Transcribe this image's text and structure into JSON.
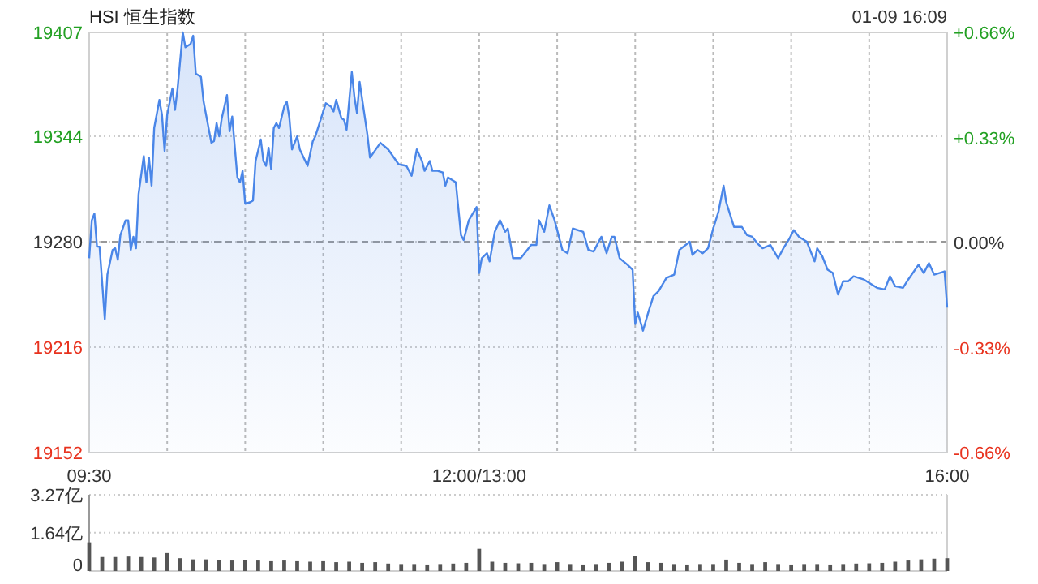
{
  "chart_data": [
    {
      "type": "area",
      "title": "HSI 恒生指数",
      "subtitle": "01-09 16:09",
      "categories": [
        "09:30",
        null,
        null,
        null,
        null,
        null,
        null,
        null,
        null,
        null,
        null,
        null,
        null,
        null,
        null,
        null,
        null,
        null,
        null,
        null,
        null,
        null,
        null,
        null,
        null,
        null,
        null,
        null,
        null,
        null,
        null,
        null,
        null,
        null,
        null,
        null,
        null,
        null,
        null,
        null,
        null,
        null,
        null,
        null,
        null,
        null,
        null,
        null,
        null,
        null,
        null,
        null,
        null,
        null,
        null,
        null,
        null,
        null,
        null,
        null,
        null,
        null,
        null,
        null,
        null,
        null,
        null,
        null,
        null,
        null,
        null,
        null,
        null,
        null,
        null,
        null,
        null,
        null,
        null,
        null,
        null,
        null,
        null,
        null,
        null,
        null,
        null,
        null,
        null,
        null,
        null,
        null,
        null,
        null,
        null,
        null,
        null,
        null,
        null,
        null,
        null,
        null,
        null,
        null,
        null,
        null,
        null,
        null,
        null,
        null,
        null,
        null,
        null,
        null,
        null,
        null,
        null,
        null,
        null,
        null,
        null,
        null,
        null,
        null,
        null,
        null,
        null,
        null,
        null,
        null,
        null,
        null,
        null,
        null,
        null,
        null,
        null,
        null,
        null,
        null,
        null,
        null,
        null,
        null,
        null,
        null,
        null,
        null,
        null,
        null,
        "12:00/13:00",
        null,
        null,
        null,
        null,
        null,
        null,
        null,
        null,
        null,
        null,
        null,
        null,
        null,
        null,
        null,
        null,
        null,
        null,
        null,
        null,
        null,
        null,
        null,
        null,
        null,
        null,
        null,
        null,
        null,
        null,
        null,
        null,
        null,
        null,
        null,
        null,
        null,
        null,
        null,
        null,
        null,
        null,
        null,
        null,
        null,
        null,
        null,
        null,
        null,
        null,
        null,
        null,
        null,
        null,
        null,
        null,
        null,
        null,
        null,
        null,
        null,
        null,
        null,
        null,
        null,
        null,
        null,
        null,
        null,
        null,
        null,
        null,
        null,
        null,
        null,
        null,
        null,
        null,
        null,
        null,
        null,
        null,
        null,
        null,
        null,
        null,
        null,
        null,
        null,
        null,
        null,
        null,
        null,
        null,
        null,
        null,
        null,
        null,
        null,
        null,
        null,
        null,
        null,
        null,
        null,
        null,
        null,
        null,
        null,
        null,
        null,
        null,
        null,
        null,
        null,
        null,
        null,
        null,
        null,
        null,
        null,
        null,
        null,
        null,
        null,
        null,
        null,
        null,
        null,
        null,
        null,
        null,
        null,
        null,
        null,
        null,
        null,
        null,
        null,
        null,
        null,
        null,
        null,
        null,
        null,
        null,
        null,
        null,
        null,
        null,
        null,
        null,
        null,
        null,
        null,
        null,
        null,
        null,
        null,
        null,
        null,
        null,
        null,
        null,
        null,
        null,
        null,
        null,
        null,
        null,
        null,
        null,
        null,
        null,
        null,
        null,
        null,
        null,
        null,
        "16:00"
      ],
      "series": [
        {
          "color": "#4a86e8",
          "values": [
            19270,
            19293,
            19297,
            19277,
            19277,
            null,
            19233,
            19260,
            null,
            19275,
            19276,
            19269,
            19284,
            null,
            19293,
            19293,
            19275,
            19283,
            19276,
            19309,
            null,
            19332,
            19316,
            19331,
            19314,
            19349,
            null,
            19366,
            19357,
            19335,
            19357,
            null,
            19373,
            19360,
            19373,
            null,
            19407,
            19398,
            null,
            19400,
            19405,
            19382,
            null,
            19380,
            19365,
            null,
            null,
            19340,
            19341,
            19352,
            19344,
            19355,
            null,
            19369,
            19347,
            19356,
            null,
            19319,
            19316,
            19323,
            19303,
            null,
            19304,
            19305,
            19329,
            null,
            19342,
            19329,
            19326,
            19337,
            19324,
            19349,
            19352,
            19349,
            null,
            19362,
            19365,
            19355,
            19336,
            null,
            19344,
            19336,
            null,
            null,
            19326,
            null,
            19341,
            19344,
            null,
            19354,
            null,
            19364,
            null,
            19362,
            19359,
            19366,
            null,
            19355,
            19354,
            19348,
            null,
            19383,
            19368,
            19358,
            19377,
            null,
            null,
            19345,
            19331,
            null,
            null,
            null,
            19340,
            null,
            null,
            19336,
            null,
            null,
            null,
            19327,
            null,
            null,
            19326,
            null,
            19320,
            null,
            19336,
            null,
            19329,
            19323,
            null,
            19329,
            19323,
            null,
            19323,
            null,
            19322,
            19314,
            19319,
            null,
            null,
            19316,
            null,
            19284,
            19281,
            null,
            19293,
            null,
            null,
            19301,
            19261,
            19270,
            null,
            19273,
            19268,
            null,
            19286,
            null,
            19293,
            null,
            19286,
            19288,
            null,
            19270,
            null,
            null,
            19270,
            null,
            null,
            null,
            19278,
            null,
            19278,
            19293,
            null,
            19286,
            null,
            19302,
            null,
            19293,
            null,
            null,
            19275,
            null,
            19273,
            null,
            19288,
            null,
            null,
            null,
            19286,
            null,
            19275,
            null,
            19274,
            null,
            null,
            19283,
            null,
            19273,
            null,
            19283,
            19283,
            null,
            19270,
            null,
            null,
            19266,
            null,
            19263,
            19230,
            19237,
            null,
            19226,
            null,
            19237,
            null,
            19247,
            null,
            19250,
            null,
            null,
            19258,
            null,
            null,
            19260,
            null,
            19275,
            null,
            null,
            null,
            19280,
            19272,
            null,
            19275,
            null,
            19273,
            null,
            19276,
            null,
            19288,
            null,
            19298,
            null,
            19314,
            19304,
            null,
            null,
            19289,
            null,
            null,
            19289,
            null,
            19284,
            null,
            19283,
            null,
            19279,
            null,
            19276,
            null,
            null,
            19278,
            null,
            null,
            19270,
            null,
            19276,
            null,
            19281,
            null,
            19287,
            null,
            19283,
            null,
            null,
            19280,
            null,
            null,
            19268,
            19276,
            null,
            19271,
            null,
            19263,
            null,
            19261,
            null,
            19248,
            null,
            19256,
            null,
            19256,
            null,
            19259,
            null,
            null,
            null,
            19257,
            null,
            null,
            null,
            null,
            19252,
            null,
            null,
            19251,
            null,
            19259,
            null,
            19253,
            null,
            null,
            19252,
            null,
            19257,
            null,
            null,
            null,
            19266,
            null,
            19261,
            null,
            19267,
            null,
            19260,
            null,
            null,
            null,
            19262,
            19240
          ]
        }
      ],
      "ylim": [
        19152,
        19407
      ],
      "yticks": [
        19152,
        19216,
        19280,
        19344,
        19407
      ],
      "y2lim": [
        -0.66,
        0.66
      ],
      "y2ticks": [
        {
          "value": -0.66,
          "label": "-0.66%"
        },
        {
          "value": -0.33,
          "label": "-0.33%"
        },
        {
          "value": 0,
          "label": "0.00%"
        },
        {
          "value": 0.33,
          "label": "+0.33%"
        },
        {
          "value": 0.66,
          "label": "+0.66%"
        }
      ],
      "ref_lines": [
        {
          "axis": "y",
          "value": 19280,
          "line_style": "dashed",
          "color": "#999999"
        }
      ],
      "grid": true
    },
    {
      "type": "bar",
      "color": "#555555",
      "categories": [
        null,
        null,
        null,
        null,
        null,
        null,
        null,
        null,
        null,
        null,
        null,
        null,
        null,
        null,
        null,
        null,
        null,
        null,
        null,
        null,
        null,
        null,
        null,
        null,
        null,
        null,
        null,
        null,
        null,
        null,
        null,
        null,
        null,
        null,
        null,
        null,
        null,
        null,
        null,
        null,
        null,
        null,
        null,
        null,
        null,
        null,
        null,
        null,
        null,
        null,
        null,
        null,
        null,
        null,
        null,
        null,
        null,
        null,
        null,
        null,
        null,
        null,
        null,
        null,
        null,
        null,
        null
      ],
      "values": [
        1.23,
        0.6,
        0.6,
        0.62,
        0.6,
        0.58,
        0.77,
        0.55,
        0.5,
        0.5,
        0.48,
        0.45,
        0.48,
        0.45,
        0.42,
        0.45,
        0.42,
        0.4,
        0.42,
        0.38,
        0.4,
        0.35,
        0.38,
        0.32,
        0.3,
        0.3,
        0.28,
        0.3,
        0.32,
        0.35,
        0.95,
        0.4,
        0.35,
        0.33,
        0.35,
        0.3,
        0.38,
        0.3,
        0.28,
        0.3,
        0.35,
        0.4,
        0.65,
        0.38,
        0.35,
        0.3,
        0.28,
        0.3,
        0.3,
        0.49,
        0.35,
        0.3,
        0.38,
        0.3,
        0.28,
        0.3,
        0.3,
        0.28,
        0.3,
        0.32,
        0.33,
        0.35,
        0.4,
        0.45,
        0.5,
        0.53,
        0.55
      ],
      "ylim": [
        0,
        3.27
      ],
      "yticks": [
        {
          "value": 0,
          "label": "0"
        },
        {
          "value": 1.64,
          "label": "1.64亿"
        },
        {
          "value": 3.27,
          "label": "3.27亿"
        }
      ],
      "tick_labels": "y",
      "grid": "y"
    }
  ]
}
